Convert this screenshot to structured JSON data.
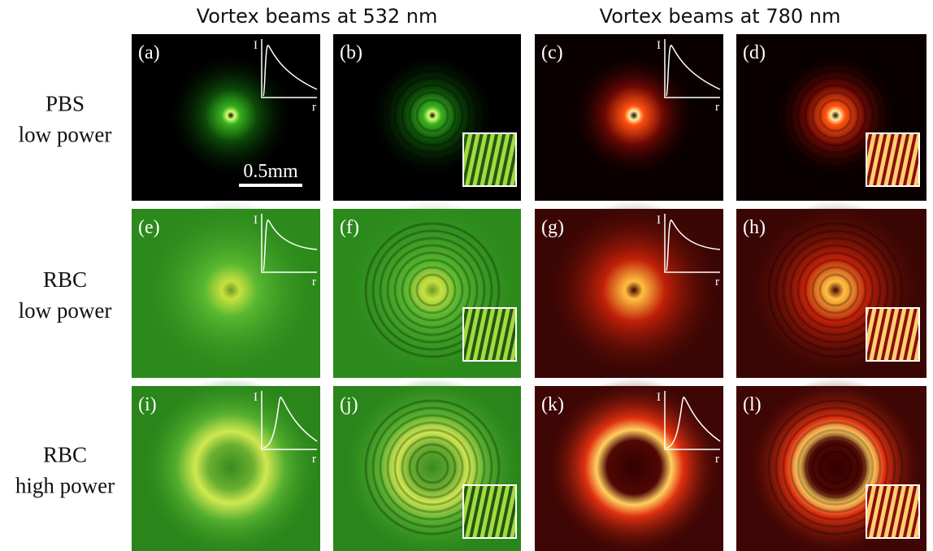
{
  "column_headers": [
    "Vortex beams at 532 nm",
    "Vortex beams at 780 nm"
  ],
  "rows": [
    {
      "label": [
        "PBS",
        "low power"
      ],
      "panels": [
        "(a)",
        "(b)",
        "(c)",
        "(d)"
      ]
    },
    {
      "label": [
        "RBC",
        "low power"
      ],
      "panels": [
        "(e)",
        "(f)",
        "(g)",
        "(h)"
      ]
    },
    {
      "label": [
        "RBC",
        "high power"
      ],
      "panels": [
        "(i)",
        "(j)",
        "(k)",
        "(l)"
      ]
    }
  ],
  "inset_axes": {
    "y": "I",
    "x": "r"
  },
  "scale_bar": "0.5mm"
}
